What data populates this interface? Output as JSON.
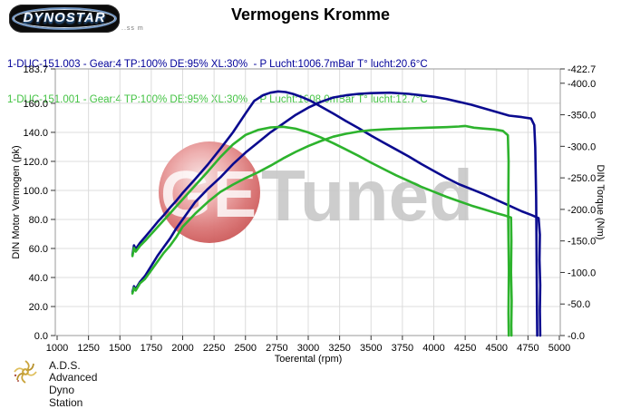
{
  "header": {
    "logo_text": "DYNOSTAR",
    "logo_small_text": "..ss m",
    "title": "Vermogens Kromme"
  },
  "legend": {
    "run1": "1-DUC-151.003 - Gear:4 TP:100% DE:95% XL:30%  - P Lucht:1006.7mBar T° lucht:20.6°C",
    "run2": "1-DUC-151.001 - Gear:4 TP:100% DE:95% XL:30%  - P Lucht:1008.0mBar T° lucht:12.7°C",
    "run1_color": "#000099",
    "run2_color": "#44c344"
  },
  "watermark": {
    "circle_text": "GE",
    "text": "Tuned",
    "circle_color": "#d96b6b",
    "text_color": "#c6c6c6"
  },
  "footer": {
    "name": "A.D.S.",
    "subtitle": "Advanced Dyno Station"
  },
  "chart_data": {
    "type": "line",
    "title": "Vermogens Kromme",
    "xlabel": "Toerental (rpm)",
    "ylabel_left": "DIN Motor Vermogen (pk)",
    "ylabel_right": "DIN Torque (Nm)",
    "x_range": [
      1000,
      5000
    ],
    "y_left_max": 183.7,
    "y_right_max": 422.7,
    "grid": true,
    "x_ticks": [
      1000,
      1250,
      1500,
      1750,
      2000,
      2250,
      2500,
      2750,
      3000,
      3250,
      3500,
      3750,
      4000,
      4250,
      4500,
      4750,
      5000
    ],
    "y_left_ticks": {
      "labels": [
        "183.7",
        "160.0",
        "140.0",
        "120.0",
        "100.0",
        "80.0",
        "60.0",
        "40.0",
        "20.0",
        "0.0"
      ],
      "values": [
        183.7,
        160,
        140,
        120,
        100,
        80,
        60,
        40,
        20,
        0
      ]
    },
    "y_right_ticks": {
      "labels": [
        "-422.7",
        "-400.0",
        "-350.0",
        "-300.0",
        "-250.0",
        "-200.0",
        "-150.0",
        "-100.0",
        "-50.0",
        "-0.0"
      ],
      "values": [
        422.7,
        400,
        350,
        300,
        250,
        200,
        150,
        100,
        50,
        0
      ]
    },
    "series": [
      {
        "name": "1-DUC-151.003 vermogen (pk)",
        "axis": "left",
        "color": "#0a0a8f",
        "points": [
          [
            1600,
            30
          ],
          [
            1612,
            34
          ],
          [
            1625,
            32
          ],
          [
            1660,
            37
          ],
          [
            1700,
            41
          ],
          [
            1750,
            48
          ],
          [
            1800,
            55
          ],
          [
            1850,
            61
          ],
          [
            1900,
            67
          ],
          [
            1950,
            74
          ],
          [
            2000,
            80
          ],
          [
            2100,
            92
          ],
          [
            2200,
            101
          ],
          [
            2300,
            109
          ],
          [
            2400,
            118
          ],
          [
            2500,
            126
          ],
          [
            2600,
            133
          ],
          [
            2700,
            140
          ],
          [
            2800,
            146
          ],
          [
            2900,
            152
          ],
          [
            3000,
            157
          ],
          [
            3100,
            161
          ],
          [
            3200,
            164
          ],
          [
            3300,
            165.5
          ],
          [
            3400,
            166.5
          ],
          [
            3500,
            167
          ],
          [
            3650,
            167.3
          ],
          [
            3800,
            166.5
          ],
          [
            3900,
            165.5
          ],
          [
            4000,
            164.5
          ],
          [
            4100,
            163
          ],
          [
            4200,
            161
          ],
          [
            4300,
            159
          ],
          [
            4400,
            156.5
          ],
          [
            4500,
            154
          ],
          [
            4600,
            151.5
          ],
          [
            4700,
            150.5
          ],
          [
            4775,
            149.5
          ],
          [
            4800,
            145
          ],
          [
            4808,
            130
          ],
          [
            4815,
            95
          ],
          [
            4819,
            55
          ],
          [
            4822,
            20
          ],
          [
            4824,
            0
          ]
        ]
      },
      {
        "name": "1-DUC-151.003 koppel (Nm)",
        "axis": "right",
        "color": "#0a0a8f",
        "points": [
          [
            1600,
            128
          ],
          [
            1612,
            143
          ],
          [
            1626,
            137
          ],
          [
            1660,
            147
          ],
          [
            1700,
            156
          ],
          [
            1750,
            168
          ],
          [
            1800,
            180
          ],
          [
            1850,
            191
          ],
          [
            1900,
            203
          ],
          [
            1950,
            214
          ],
          [
            2000,
            226
          ],
          [
            2100,
            248
          ],
          [
            2200,
            271
          ],
          [
            2300,
            296
          ],
          [
            2400,
            322
          ],
          [
            2500,
            352
          ],
          [
            2570,
            372
          ],
          [
            2640,
            381
          ],
          [
            2700,
            385
          ],
          [
            2760,
            387
          ],
          [
            2820,
            386
          ],
          [
            2880,
            383
          ],
          [
            2950,
            378
          ],
          [
            3020,
            372
          ],
          [
            3100,
            363
          ],
          [
            3200,
            352
          ],
          [
            3300,
            340
          ],
          [
            3400,
            329
          ],
          [
            3500,
            317
          ],
          [
            3600,
            306
          ],
          [
            3700,
            295
          ],
          [
            3800,
            284
          ],
          [
            3900,
            272
          ],
          [
            4000,
            261
          ],
          [
            4100,
            250
          ],
          [
            4200,
            240
          ],
          [
            4300,
            232
          ],
          [
            4400,
            224
          ],
          [
            4500,
            215
          ],
          [
            4600,
            206
          ],
          [
            4700,
            197
          ],
          [
            4780,
            191
          ],
          [
            4835,
            186
          ],
          [
            4845,
            160
          ],
          [
            4842,
            120
          ],
          [
            4848,
            80
          ],
          [
            4845,
            40
          ],
          [
            4848,
            0
          ]
        ]
      },
      {
        "name": "1-DUC-151.001 vermogen (pk)",
        "axis": "left",
        "color": "#2db32d",
        "points": [
          [
            1600,
            29
          ],
          [
            1612,
            33
          ],
          [
            1625,
            31
          ],
          [
            1660,
            36
          ],
          [
            1700,
            39
          ],
          [
            1750,
            45
          ],
          [
            1800,
            51
          ],
          [
            1850,
            57
          ],
          [
            1900,
            62
          ],
          [
            1950,
            68
          ],
          [
            2000,
            75
          ],
          [
            2100,
            84
          ],
          [
            2200,
            92
          ],
          [
            2300,
            99
          ],
          [
            2400,
            104
          ],
          [
            2500,
            108.5
          ],
          [
            2600,
            112.5
          ],
          [
            2700,
            117
          ],
          [
            2800,
            122
          ],
          [
            2900,
            126.5
          ],
          [
            3000,
            130.5
          ],
          [
            3100,
            134
          ],
          [
            3200,
            137
          ],
          [
            3300,
            139
          ],
          [
            3400,
            140.5
          ],
          [
            3500,
            141.5
          ],
          [
            3650,
            142.3
          ],
          [
            3800,
            142.8
          ],
          [
            3950,
            143.2
          ],
          [
            4100,
            143.6
          ],
          [
            4200,
            144
          ],
          [
            4250,
            144.4
          ],
          [
            4320,
            143.2
          ],
          [
            4400,
            142.6
          ],
          [
            4480,
            142
          ],
          [
            4550,
            141
          ],
          [
            4590,
            138
          ],
          [
            4596,
            120
          ],
          [
            4593,
            80
          ],
          [
            4598,
            45
          ],
          [
            4595,
            15
          ],
          [
            4597,
            0
          ]
        ]
      },
      {
        "name": "1-DUC-151.001 koppel (Nm)",
        "axis": "right",
        "color": "#2db32d",
        "points": [
          [
            1600,
            126
          ],
          [
            1612,
            139
          ],
          [
            1626,
            133
          ],
          [
            1660,
            142
          ],
          [
            1700,
            150
          ],
          [
            1750,
            161
          ],
          [
            1800,
            172
          ],
          [
            1850,
            183
          ],
          [
            1900,
            194
          ],
          [
            1950,
            205
          ],
          [
            2000,
            216
          ],
          [
            2100,
            238
          ],
          [
            2200,
            260
          ],
          [
            2300,
            283
          ],
          [
            2400,
            303
          ],
          [
            2500,
            318
          ],
          [
            2600,
            326
          ],
          [
            2700,
            330
          ],
          [
            2800,
            331
          ],
          [
            2900,
            328
          ],
          [
            3000,
            322
          ],
          [
            3100,
            314
          ],
          [
            3200,
            305
          ],
          [
            3300,
            295
          ],
          [
            3400,
            285
          ],
          [
            3500,
            274
          ],
          [
            3600,
            264
          ],
          [
            3700,
            254
          ],
          [
            3800,
            245
          ],
          [
            3900,
            236
          ],
          [
            4000,
            228
          ],
          [
            4100,
            220
          ],
          [
            4200,
            213
          ],
          [
            4300,
            206
          ],
          [
            4400,
            200
          ],
          [
            4500,
            194
          ],
          [
            4570,
            190
          ],
          [
            4615,
            187
          ],
          [
            4618,
            150
          ],
          [
            4615,
            100
          ],
          [
            4620,
            55
          ],
          [
            4617,
            15
          ],
          [
            4619,
            0
          ]
        ]
      }
    ]
  }
}
